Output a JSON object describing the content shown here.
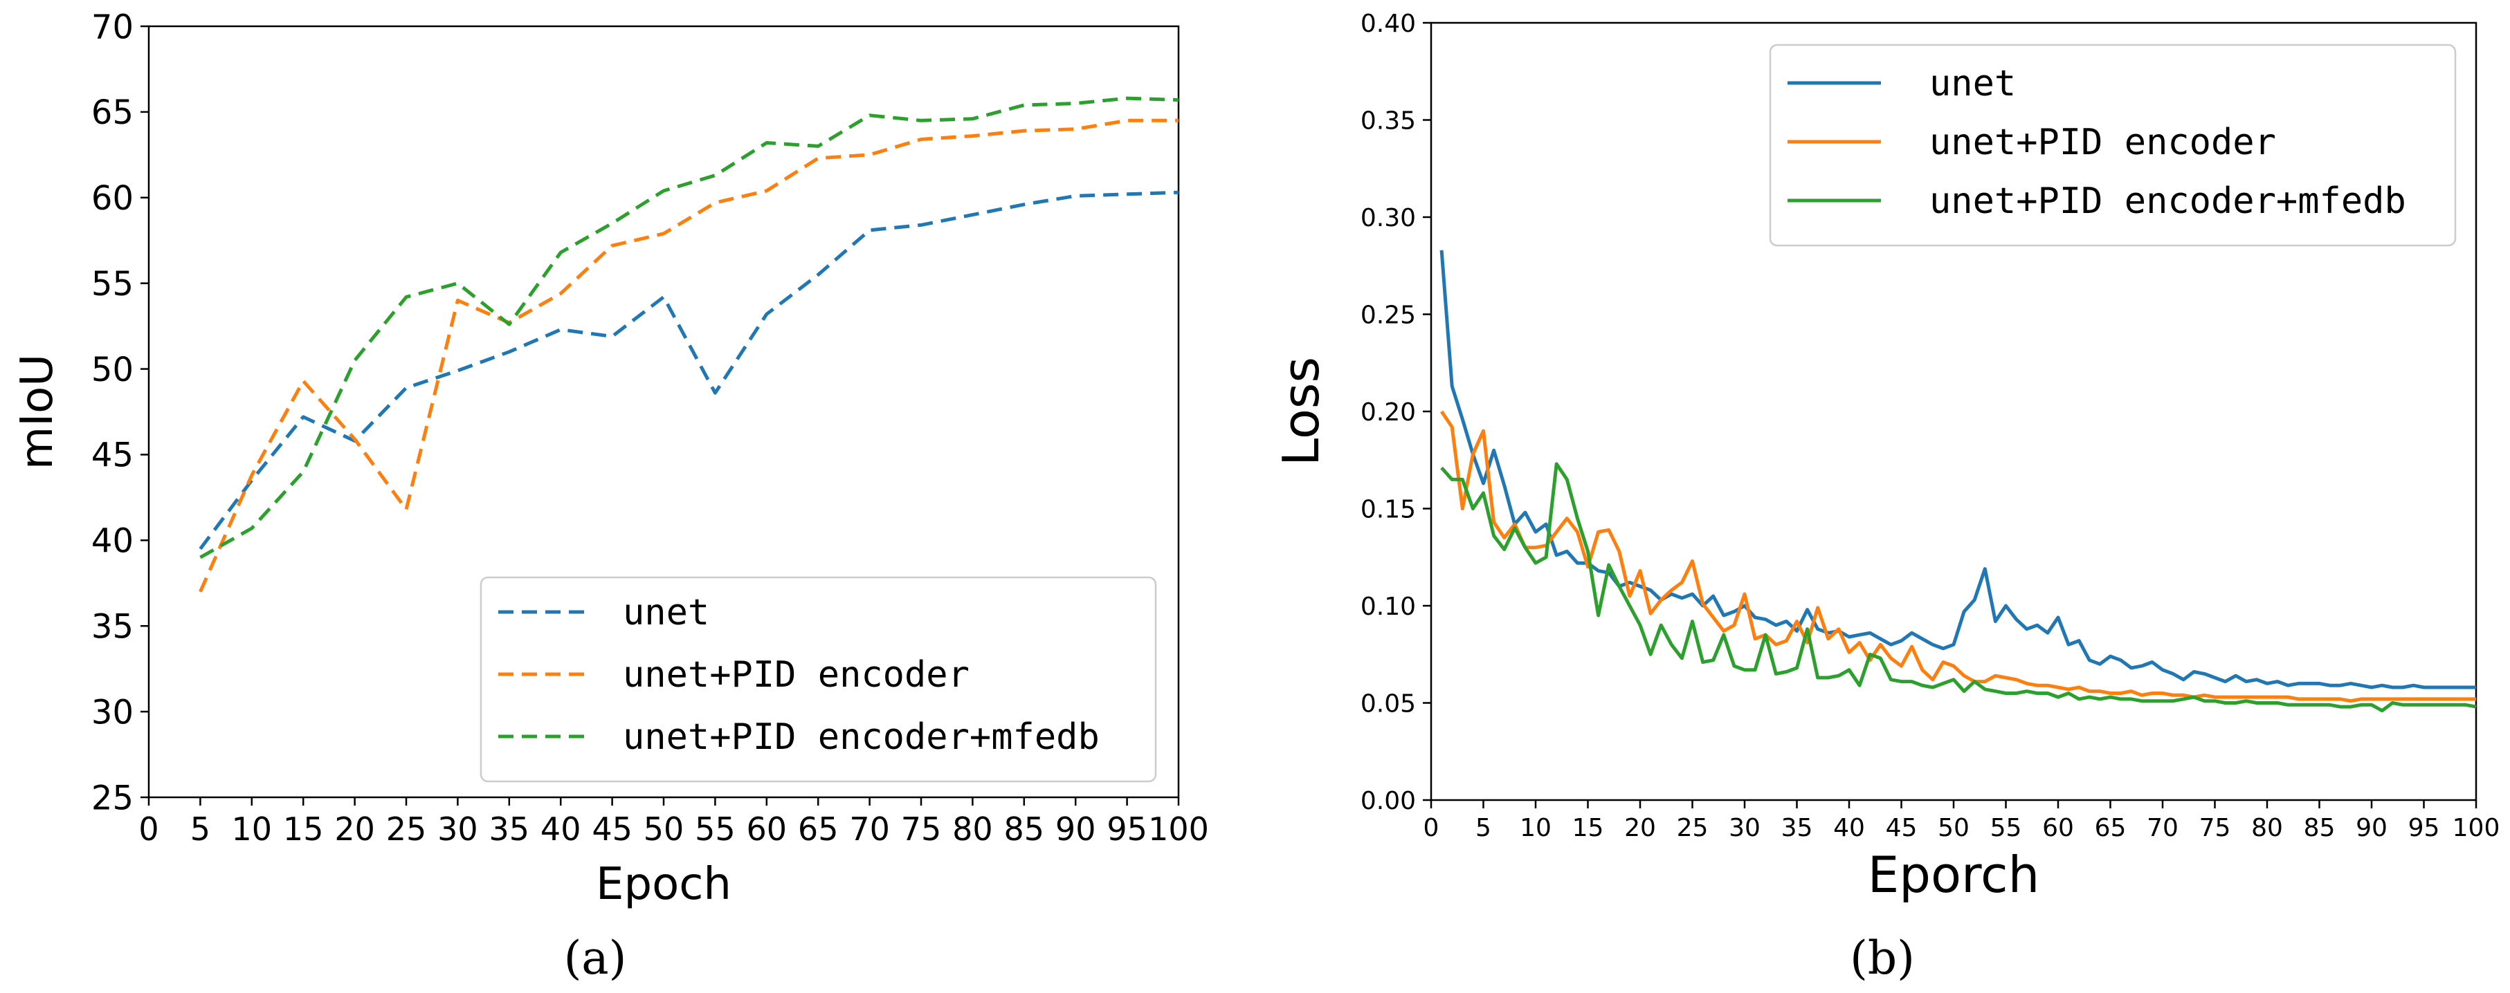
{
  "chart_data": [
    {
      "type": "line",
      "panel_label": "(a)",
      "xlabel": "Epoch",
      "ylabel": "mIoU",
      "xlim": [
        0,
        100
      ],
      "ylim": [
        25,
        70
      ],
      "xticks": [
        0,
        5,
        10,
        15,
        20,
        25,
        30,
        35,
        40,
        45,
        50,
        55,
        60,
        65,
        70,
        75,
        80,
        85,
        90,
        95,
        100
      ],
      "yticks": [
        25,
        30,
        35,
        40,
        45,
        50,
        55,
        60,
        65,
        70
      ],
      "legend_position": "lower-right",
      "line_style": "dashed",
      "x": [
        5,
        10,
        15,
        20,
        25,
        30,
        35,
        40,
        45,
        50,
        55,
        60,
        65,
        70,
        75,
        80,
        85,
        90,
        95,
        100
      ],
      "series": [
        {
          "name": "unet",
          "color": "#1f77b4",
          "values": [
            39.5,
            43.5,
            47.2,
            45.8,
            48.9,
            49.9,
            51.0,
            52.3,
            51.9,
            54.2,
            48.6,
            53.2,
            55.5,
            58.1,
            58.4,
            59.0,
            59.6,
            60.1,
            60.2,
            60.3
          ]
        },
        {
          "name": "unet+PID encoder",
          "color": "#ff7f0e",
          "values": [
            37.0,
            43.8,
            49.3,
            45.9,
            41.8,
            54.0,
            52.7,
            54.4,
            57.2,
            57.9,
            59.7,
            60.4,
            62.3,
            62.5,
            63.4,
            63.6,
            63.9,
            64.0,
            64.5,
            64.5
          ]
        },
        {
          "name": "unet+PID encoder+mfedb",
          "color": "#2ca02c",
          "values": [
            39.0,
            40.7,
            44.0,
            50.5,
            54.2,
            55.0,
            52.6,
            56.8,
            58.5,
            60.4,
            61.3,
            63.2,
            63.0,
            64.8,
            64.5,
            64.6,
            65.4,
            65.5,
            65.8,
            65.7
          ]
        }
      ]
    },
    {
      "type": "line",
      "panel_label": "(b)",
      "xlabel": "Eporch",
      "ylabel": "Loss",
      "xlim": [
        0,
        100
      ],
      "ylim": [
        0.0,
        0.4
      ],
      "xticks": [
        0,
        5,
        10,
        15,
        20,
        25,
        30,
        35,
        40,
        45,
        50,
        55,
        60,
        65,
        70,
        75,
        80,
        85,
        90,
        95,
        100
      ],
      "yticks": [
        0.0,
        0.05,
        0.1,
        0.15,
        0.2,
        0.25,
        0.3,
        0.35,
        0.4
      ],
      "ytick_labels": [
        "0.00",
        "0.05",
        "0.10",
        "0.15",
        "0.20",
        "0.25",
        "0.30",
        "0.35",
        "0.40"
      ],
      "legend_position": "upper-right",
      "line_style": "solid",
      "x_start": 1,
      "x_step": 1,
      "series": [
        {
          "name": "unet",
          "color": "#1f77b4",
          "values": [
            0.283,
            0.213,
            0.196,
            0.178,
            0.163,
            0.18,
            0.162,
            0.142,
            0.148,
            0.138,
            0.142,
            0.126,
            0.128,
            0.122,
            0.122,
            0.118,
            0.117,
            0.11,
            0.112,
            0.11,
            0.108,
            0.103,
            0.106,
            0.104,
            0.106,
            0.1,
            0.105,
            0.095,
            0.097,
            0.1,
            0.094,
            0.093,
            0.09,
            0.092,
            0.087,
            0.098,
            0.088,
            0.086,
            0.087,
            0.084,
            0.085,
            0.086,
            0.083,
            0.08,
            0.082,
            0.086,
            0.083,
            0.08,
            0.078,
            0.08,
            0.097,
            0.103,
            0.119,
            0.092,
            0.1,
            0.093,
            0.088,
            0.09,
            0.086,
            0.094,
            0.08,
            0.082,
            0.072,
            0.07,
            0.074,
            0.072,
            0.068,
            0.069,
            0.071,
            0.067,
            0.065,
            0.062,
            0.066,
            0.065,
            0.063,
            0.061,
            0.064,
            0.061,
            0.062,
            0.06,
            0.061,
            0.059,
            0.06,
            0.06,
            0.06,
            0.059,
            0.059,
            0.06,
            0.059,
            0.058,
            0.059,
            0.058,
            0.058,
            0.059,
            0.058,
            0.058,
            0.058,
            0.058,
            0.058,
            0.058
          ]
        },
        {
          "name": "unet+PID encoder",
          "color": "#ff7f0e",
          "values": [
            0.2,
            0.192,
            0.15,
            0.178,
            0.19,
            0.143,
            0.135,
            0.142,
            0.13,
            0.13,
            0.131,
            0.138,
            0.145,
            0.138,
            0.12,
            0.138,
            0.139,
            0.128,
            0.105,
            0.118,
            0.096,
            0.103,
            0.108,
            0.112,
            0.123,
            0.101,
            0.094,
            0.087,
            0.09,
            0.106,
            0.083,
            0.085,
            0.08,
            0.082,
            0.092,
            0.081,
            0.099,
            0.083,
            0.088,
            0.076,
            0.081,
            0.072,
            0.08,
            0.073,
            0.069,
            0.079,
            0.067,
            0.062,
            0.071,
            0.069,
            0.064,
            0.061,
            0.061,
            0.064,
            0.063,
            0.062,
            0.06,
            0.059,
            0.059,
            0.058,
            0.057,
            0.058,
            0.056,
            0.056,
            0.055,
            0.055,
            0.056,
            0.054,
            0.055,
            0.055,
            0.054,
            0.054,
            0.053,
            0.054,
            0.053,
            0.053,
            0.053,
            0.053,
            0.053,
            0.053,
            0.053,
            0.053,
            0.052,
            0.052,
            0.052,
            0.052,
            0.052,
            0.051,
            0.052,
            0.052,
            0.052,
            0.052,
            0.052,
            0.052,
            0.052,
            0.052,
            0.052,
            0.052,
            0.052,
            0.052
          ]
        },
        {
          "name": "unet+PID encoder+mfedb",
          "color": "#2ca02c",
          "values": [
            0.171,
            0.165,
            0.165,
            0.15,
            0.158,
            0.136,
            0.129,
            0.14,
            0.13,
            0.122,
            0.125,
            0.173,
            0.165,
            0.145,
            0.128,
            0.095,
            0.121,
            0.11,
            0.1,
            0.09,
            0.075,
            0.09,
            0.08,
            0.073,
            0.092,
            0.071,
            0.072,
            0.085,
            0.069,
            0.067,
            0.067,
            0.085,
            0.065,
            0.066,
            0.068,
            0.088,
            0.063,
            0.063,
            0.064,
            0.067,
            0.059,
            0.075,
            0.073,
            0.062,
            0.061,
            0.061,
            0.059,
            0.058,
            0.06,
            0.062,
            0.056,
            0.061,
            0.057,
            0.056,
            0.055,
            0.055,
            0.056,
            0.055,
            0.055,
            0.053,
            0.055,
            0.052,
            0.053,
            0.052,
            0.053,
            0.052,
            0.052,
            0.051,
            0.051,
            0.051,
            0.051,
            0.052,
            0.053,
            0.051,
            0.051,
            0.05,
            0.05,
            0.051,
            0.05,
            0.05,
            0.05,
            0.049,
            0.049,
            0.049,
            0.049,
            0.049,
            0.048,
            0.048,
            0.049,
            0.049,
            0.046,
            0.05,
            0.049,
            0.049,
            0.049,
            0.049,
            0.049,
            0.049,
            0.049,
            0.048
          ]
        }
      ]
    }
  ]
}
